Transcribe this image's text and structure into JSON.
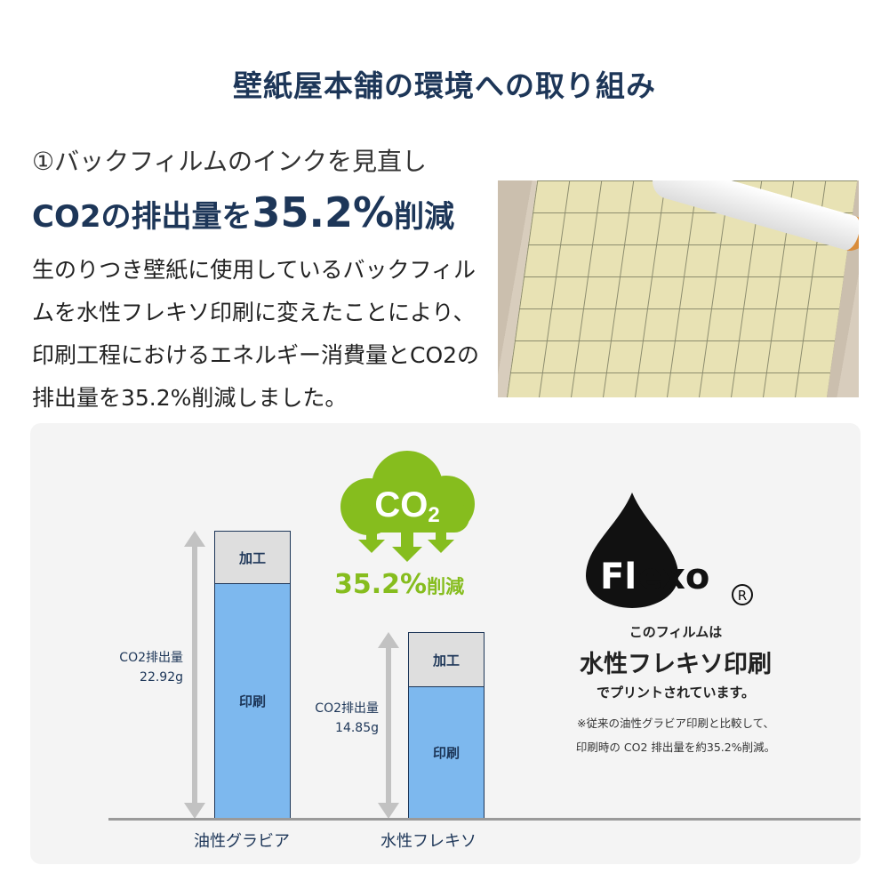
{
  "title": "壁紙屋本舗の環境への取り組み",
  "section": {
    "subtitle": "①バックフィルムのインクを見直し",
    "headline_pre": "CO2の排出量を",
    "headline_num": "35.2%",
    "headline_post": "削減",
    "paragraph": "生のりつき壁紙に使用しているバックフィルムを水性フレキソ印刷に変えたことにより、印刷工程におけるエネルギー消費量とCO2の排出量を35.2%削減しました。"
  },
  "cloud": {
    "label": "CO2",
    "reduction_num": "35.2%",
    "reduction_word": "削減"
  },
  "flexo": {
    "logo": "Flexo",
    "registered": "®",
    "line1": "このフィルムは",
    "line2": "水性フレキソ印刷",
    "line3": "でプリントされています。",
    "note1": "※従来の油性グラビア印刷と比較して、",
    "note2": "印刷時の CO2 排出量を約35.2%削減。"
  },
  "colors": {
    "navy": "#1d3658",
    "green": "#86bd1e",
    "print": "#7db8ee",
    "process": "#dedede"
  },
  "chart_data": {
    "type": "bar",
    "stacked": true,
    "categories": [
      "油性グラビア",
      "水性フレキソ"
    ],
    "segment_labels": [
      "印刷",
      "加工"
    ],
    "series": [
      {
        "name": "印刷",
        "values": [
          18.7,
          10.5
        ]
      },
      {
        "name": "加工",
        "values": [
          4.22,
          4.35
        ]
      }
    ],
    "totals": [
      22.92,
      14.85
    ],
    "total_labels": [
      {
        "label": "CO2排出量",
        "value": "22.92g"
      },
      {
        "label": "CO2排出量",
        "value": "14.85g"
      }
    ],
    "unit": "g",
    "ylim": [
      0,
      22.92
    ]
  }
}
